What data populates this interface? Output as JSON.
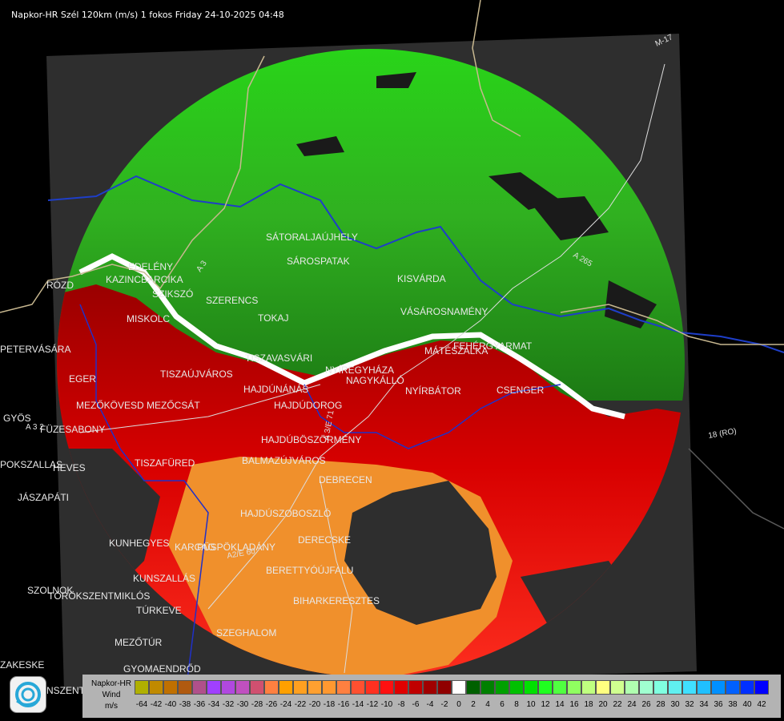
{
  "header": {
    "title": "Napkor-HR Szél 120km (m/s) 1 fokos Friday 24-10-2025 04:48"
  },
  "places": [
    "PETERVÁSÁRA",
    "EGER",
    "MEZŐKÖVESD",
    "MEZŐCSÁT",
    "TISZAÚJVÁROS",
    "GYÖS",
    "FÜZESABONY",
    "TISZAFÜRED",
    "HEVES",
    "POKSZALLAS",
    "JÁSZAPÁTI",
    "KUNHEGYES",
    "KARCAG",
    "KUNSZALLÁS",
    "SZOLNOK",
    "TÖRÖKSZENTMIKLÓS",
    "TÚRKEVE",
    "SZEGHALOM",
    "MEZŐTÚR",
    "ZAKESKE",
    "GYOMAENDRŐD",
    "NSZENT",
    "EDELÉNY",
    "KAZINCBARCIKA",
    "SZIKSZÓ",
    "MISKOLC",
    "SZERENCS",
    "TOKAJ",
    "TISZAVASVÁRI",
    "HAJDÚNÁNÁS",
    "HAJDÚDOROG",
    "NYÍREGYHÁZA",
    "NAGYKÁLLÓ",
    "NYÍRBÁTOR",
    "MÁTÉSZALKA",
    "FEHÉRGYARMAT",
    "CSENGER",
    "HAJDÚBÖSZÖRMÉNY",
    "BALMAZÚJVÁROS",
    "DEBRECEN",
    "HAJDÚSZOBOSZLÓ",
    "DERECSKE",
    "BERETTYÓÚJFALU",
    "BIHARKERESZTES",
    "PÜSPÖKLADÁNY",
    "SÁROSPATAK",
    "SÁTORALJAÚJHELY",
    "KISVÁRDA",
    "VÁSÁROSNAMÉNY",
    "RÓZD"
  ],
  "roads": [
    "A 3",
    "A 3/E 71",
    "M-17",
    "18 (RO)",
    "A 265",
    "A2/E 60",
    "A 3 2"
  ],
  "legend": {
    "title_line1": "Napkor-HR",
    "title_line2": "Wind",
    "title_line3": "m/s",
    "values": [
      "-64",
      "-42",
      "-40",
      "-38",
      "-36",
      "-34",
      "-32",
      "-30",
      "-28",
      "-26",
      "-24",
      "-22",
      "-20",
      "-18",
      "-16",
      "-14",
      "-12",
      "-10",
      "-8",
      "-6",
      "-4",
      "-2",
      "0",
      "2",
      "4",
      "6",
      "8",
      "10",
      "12",
      "14",
      "16",
      "18",
      "20",
      "22",
      "24",
      "26",
      "28",
      "30",
      "32",
      "34",
      "36",
      "38",
      "40",
      "42"
    ],
    "colors": [
      "#b0b000",
      "#c08a00",
      "#c07000",
      "#b05a10",
      "#b0508a",
      "#a040ff",
      "#b048e0",
      "#c050c0",
      "#d05070",
      "#ff8040",
      "#ffa000",
      "#ffa020",
      "#ffa030",
      "#ff9830",
      "#ff8040",
      "#ff5030",
      "#ff3020",
      "#ff1010",
      "#e00000",
      "#c00000",
      "#a00000",
      "#900000",
      "#ffffff",
      "#006000",
      "#008000",
      "#00a000",
      "#00c000",
      "#00e000",
      "#20ff20",
      "#50ff40",
      "#90ff60",
      "#c0ff80",
      "#ffff80",
      "#d0ff90",
      "#b0ffb0",
      "#a0ffd0",
      "#80ffe0",
      "#60f0f0",
      "#40e0ff",
      "#20c0ff",
      "#0090ff",
      "#0060ff",
      "#0030ff",
      "#0000ff"
    ]
  }
}
